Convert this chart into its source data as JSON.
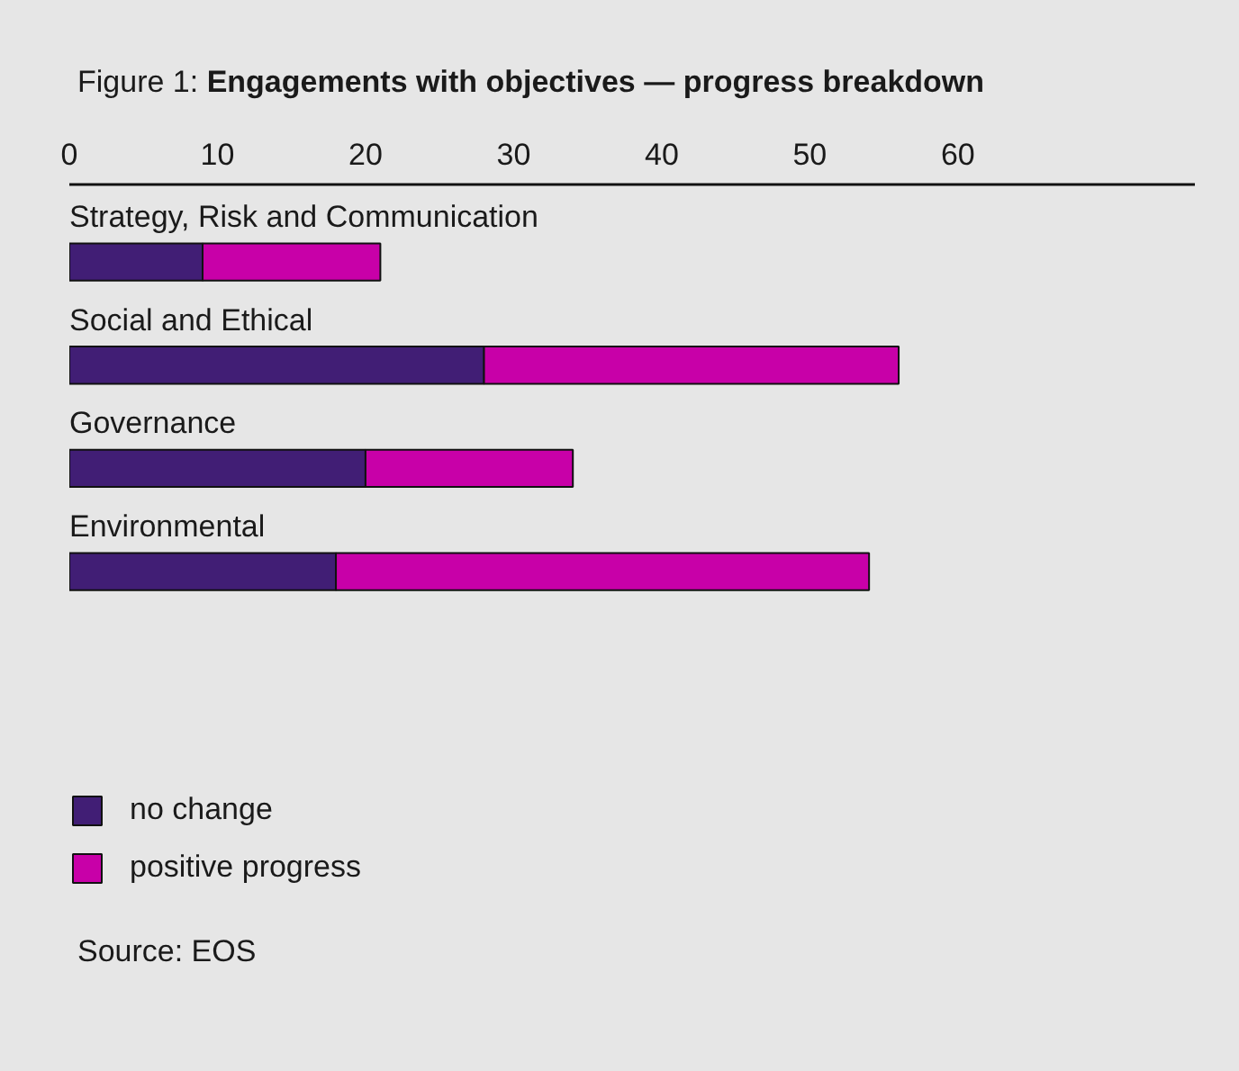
{
  "chart_data": {
    "type": "bar",
    "orientation": "horizontal",
    "stacked": true,
    "title": "Figure 1: Engagements with objectives — progress breakdown",
    "categories": [
      "Strategy, Risk and Communication",
      "Social and Ethical",
      "Governance",
      "Environmental"
    ],
    "series": [
      {
        "name": "no change",
        "color": "#411e75",
        "values": [
          9,
          28,
          20,
          18
        ]
      },
      {
        "name": "positive progress",
        "color": "#c800a8",
        "values": [
          12,
          28,
          14,
          36
        ]
      }
    ],
    "xlim": [
      0,
      76
    ],
    "xticks": [
      0,
      10,
      20,
      30,
      40,
      50,
      60
    ],
    "legend": "bottom left",
    "annotations": [
      "Source: EOS"
    ]
  }
}
